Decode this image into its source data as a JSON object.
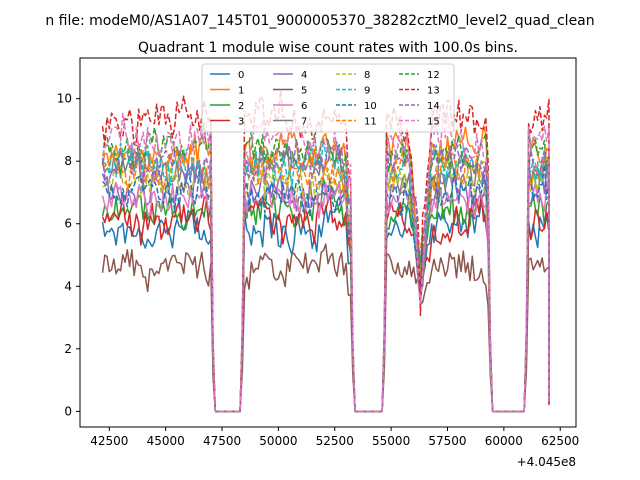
{
  "chart_data": {
    "type": "line",
    "suptitle": "n file: modeM0/AS1A07_145T01_9000005370_38282cztM0_level2_quad_clean",
    "title": "Quadrant 1 module wise count rates with 100.0s bins.",
    "xlabel": "",
    "ylabel": "",
    "x_offset_label": "+4.045e8",
    "xlim": [
      41200,
      63200
    ],
    "ylim": [
      -0.5,
      11.3
    ],
    "x_ticks": [
      42500,
      45000,
      47500,
      50000,
      52500,
      55000,
      57500,
      60000,
      62500
    ],
    "x_tick_labels": [
      "42500",
      "45000",
      "47500",
      "50000",
      "52500",
      "55000",
      "57500",
      "60000",
      "62500"
    ],
    "y_ticks": [
      0,
      2,
      4,
      6,
      8,
      10
    ],
    "y_tick_labels": [
      "0",
      "2",
      "4",
      "6",
      "8",
      "10"
    ],
    "grid": false,
    "legend_position": "top-center",
    "legend_columns": 4,
    "time_segments": [
      {
        "start": 42200,
        "end": 47000
      },
      {
        "start": 48400,
        "end": 53300
      },
      {
        "start": 54600,
        "end": 59300
      },
      {
        "start": 61200,
        "end": 62000
      }
    ],
    "gaps": [
      {
        "start": 47200,
        "end": 48300
      },
      {
        "start": 53400,
        "end": 54600
      },
      {
        "start": 59500,
        "end": 60900
      }
    ],
    "dip_time": 56300,
    "series": [
      {
        "name": "0",
        "color": "#1f77b4",
        "style": "solid",
        "mean": 5.9,
        "noise": 0.55
      },
      {
        "name": "1",
        "color": "#ff7f0e",
        "style": "solid",
        "mean": 8.3,
        "noise": 0.55
      },
      {
        "name": "2",
        "color": "#2ca02c",
        "style": "solid",
        "mean": 6.4,
        "noise": 0.55
      },
      {
        "name": "3",
        "color": "#d62728",
        "style": "solid",
        "mean": 6.1,
        "noise": 0.55
      },
      {
        "name": "4",
        "color": "#9467bd",
        "style": "solid",
        "mean": 7.2,
        "noise": 0.55
      },
      {
        "name": "5",
        "color": "#8c564b",
        "style": "solid",
        "mean": 4.6,
        "noise": 0.5
      },
      {
        "name": "6",
        "color": "#e377c2",
        "style": "solid",
        "mean": 6.8,
        "noise": 0.55
      },
      {
        "name": "7",
        "color": "#7f7f7f",
        "style": "solid",
        "mean": 7.6,
        "noise": 0.55
      },
      {
        "name": "8",
        "color": "#bcbd22",
        "style": "dashed",
        "mean": 7.4,
        "noise": 0.55
      },
      {
        "name": "9",
        "color": "#17becf",
        "style": "dashed",
        "mean": 7.9,
        "noise": 0.55
      },
      {
        "name": "10",
        "color": "#1f77b4",
        "style": "dashed",
        "mean": 7.0,
        "noise": 0.55
      },
      {
        "name": "11",
        "color": "#ff7f0e",
        "style": "dashed",
        "mean": 7.7,
        "noise": 0.55
      },
      {
        "name": "12",
        "color": "#2ca02c",
        "style": "dashed",
        "mean": 8.4,
        "noise": 0.6
      },
      {
        "name": "13",
        "color": "#d62728",
        "style": "dashed",
        "mean": 9.3,
        "noise": 0.6
      },
      {
        "name": "14",
        "color": "#9467bd",
        "style": "dashed",
        "mean": 8.0,
        "noise": 0.55
      },
      {
        "name": "15",
        "color": "#e377c2",
        "style": "dashed",
        "mean": 8.7,
        "noise": 0.6
      }
    ]
  }
}
